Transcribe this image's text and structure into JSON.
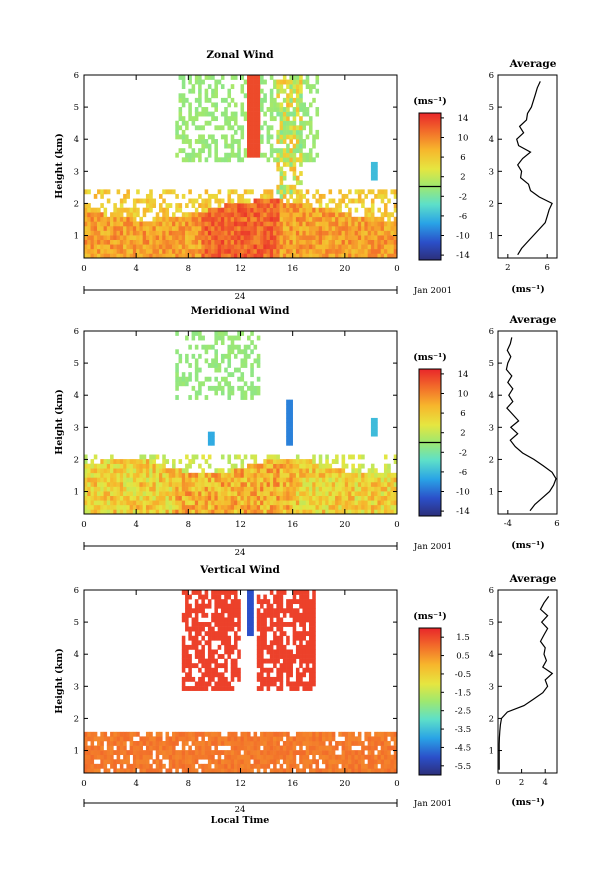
{
  "chart_data": [
    {
      "type": "heatmap",
      "title": "Zonal Wind",
      "ylabel": "Height (km)",
      "date_label": "Jan 2001",
      "x_day_tick": "24",
      "xlim": [
        0,
        24
      ],
      "ylim": [
        0.3,
        6
      ],
      "xticks": [
        "0",
        "4",
        "8",
        "12",
        "16",
        "20",
        "0"
      ],
      "yticks": [
        "1",
        "2",
        "3",
        "4",
        "5",
        "6"
      ],
      "colorbar": {
        "unit": "(ms⁻¹)",
        "range": [
          -15,
          15
        ],
        "ticks": [
          "14",
          "10",
          "6",
          "2",
          "-2",
          "-6",
          "-10",
          "-14"
        ],
        "zero_line": 0
      },
      "average_profile": {
        "title": "Average",
        "xlabel": "(ms⁻¹)",
        "xlim": [
          1,
          7
        ],
        "xticks": [
          "2",
          "6"
        ],
        "heights": [
          0.4,
          0.6,
          0.8,
          1.0,
          1.2,
          1.4,
          1.6,
          1.8,
          2.0,
          2.2,
          2.4,
          2.6,
          2.8,
          3.0,
          3.2,
          3.4,
          3.6,
          3.8,
          4.0,
          4.2,
          4.4,
          4.6,
          4.8,
          5.0,
          5.2,
          5.4,
          5.6,
          5.8
        ],
        "values": [
          3.0,
          3.4,
          4.0,
          4.6,
          5.2,
          5.8,
          6.0,
          6.2,
          6.5,
          5.2,
          4.3,
          4.1,
          3.3,
          3.4,
          3.0,
          3.5,
          4.3,
          3.1,
          2.9,
          3.6,
          3.2,
          3.9,
          4.0,
          4.4,
          4.6,
          4.8,
          5.0,
          5.3
        ]
      }
    },
    {
      "type": "heatmap",
      "title": "Meridional Wind",
      "ylabel": "Height (km)",
      "date_label": "Jan 2001",
      "x_day_tick": "24",
      "xlim": [
        0,
        24
      ],
      "ylim": [
        0.3,
        6
      ],
      "xticks": [
        "0",
        "4",
        "8",
        "12",
        "16",
        "20",
        "0"
      ],
      "yticks": [
        "1",
        "2",
        "3",
        "4",
        "5",
        "6"
      ],
      "colorbar": {
        "unit": "(ms⁻¹)",
        "range": [
          -15,
          15
        ],
        "ticks": [
          "14",
          "10",
          "6",
          "2",
          "-2",
          "-6",
          "-10",
          "-14"
        ],
        "zero_line": 0
      },
      "average_profile": {
        "title": "Average",
        "xlabel": "(ms⁻¹)",
        "xlim": [
          -6,
          6
        ],
        "xticks": [
          "-4",
          "6"
        ],
        "heights": [
          0.4,
          0.6,
          0.8,
          1.0,
          1.2,
          1.4,
          1.6,
          1.8,
          2.0,
          2.2,
          2.4,
          2.6,
          2.8,
          3.0,
          3.2,
          3.4,
          3.6,
          3.8,
          4.0,
          4.2,
          4.4,
          4.6,
          4.8,
          5.0,
          5.2,
          5.4,
          5.6,
          5.8
        ],
        "values": [
          0.5,
          1.5,
          3.0,
          4.5,
          5.3,
          5.8,
          5.0,
          3.2,
          1.3,
          -1.0,
          -2.5,
          -3.5,
          -2.0,
          -3.4,
          -1.8,
          -3.0,
          -4.2,
          -3.0,
          -3.8,
          -3.0,
          -4.0,
          -3.2,
          -4.3,
          -4.0,
          -3.4,
          -4.1,
          -3.5,
          -3.2
        ]
      }
    },
    {
      "type": "heatmap",
      "title": "Vertical Wind",
      "ylabel": "Height (km)",
      "xlabel": "Local Time",
      "date_label": "Jan 2001",
      "x_day_tick": "24",
      "xlim": [
        0,
        24
      ],
      "ylim": [
        0.3,
        6
      ],
      "xticks": [
        "0",
        "4",
        "8",
        "12",
        "16",
        "20",
        "0"
      ],
      "yticks": [
        "1",
        "2",
        "3",
        "4",
        "5",
        "6"
      ],
      "colorbar": {
        "unit": "(ms⁻¹)",
        "range": [
          -6,
          2
        ],
        "ticks": [
          "1.5",
          "0.5",
          "-0.5",
          "-1.5",
          "-2.5",
          "-3.5",
          "-4.5",
          "-5.5"
        ],
        "zero_line": null
      },
      "average_profile": {
        "title": "Average",
        "xlabel": "(ms⁻¹)",
        "xlim": [
          0,
          5
        ],
        "xticks": [
          "0",
          "2",
          "4"
        ],
        "heights": [
          0.4,
          0.6,
          0.8,
          1.0,
          1.2,
          1.4,
          1.6,
          1.8,
          2.0,
          2.2,
          2.4,
          2.6,
          2.8,
          3.0,
          3.2,
          3.4,
          3.6,
          3.8,
          4.0,
          4.2,
          4.4,
          4.6,
          4.8,
          5.0,
          5.2,
          5.4,
          5.6,
          5.8
        ],
        "values": [
          0.1,
          0.1,
          0.1,
          0.1,
          0.1,
          0.12,
          0.15,
          0.2,
          0.3,
          0.8,
          2.2,
          3.0,
          3.8,
          4.2,
          4.0,
          4.6,
          3.8,
          4.1,
          3.9,
          4.0,
          3.6,
          3.9,
          4.2,
          3.7,
          4.2,
          3.6,
          3.9,
          4.3
        ]
      }
    }
  ]
}
